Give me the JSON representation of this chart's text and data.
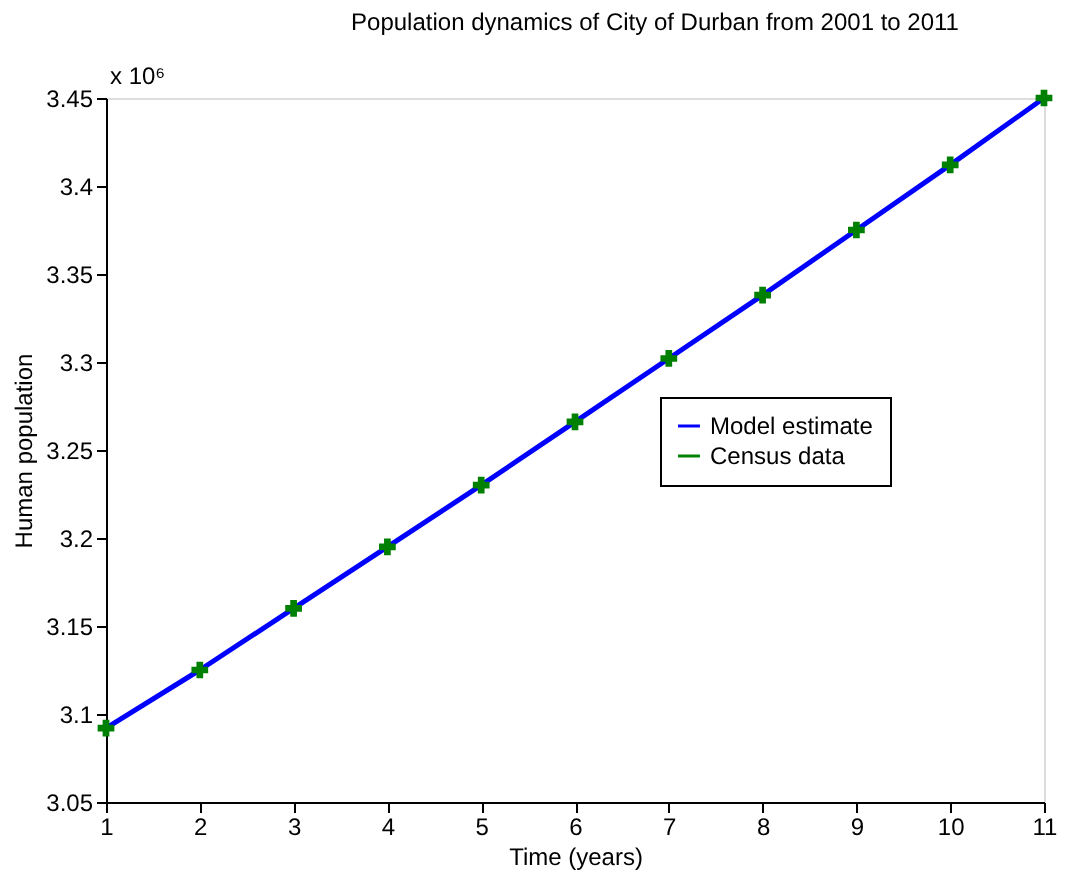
{
  "chart_data": {
    "type": "line",
    "title": "Population dynamics of City  of Durban from 2001 to 2011",
    "xlabel": "Time (years)",
    "ylabel": "Human population",
    "annotations": [
      "x 10⁶"
    ],
    "x": [
      1,
      2,
      3,
      4,
      5,
      6,
      7,
      8,
      9,
      10,
      11
    ],
    "series": [
      {
        "name": "Model estimate",
        "type": "line",
        "color": "#0000ff",
        "line_style": "solid",
        "values": [
          3.092,
          3.125,
          3.16,
          3.195,
          3.23,
          3.266,
          3.302,
          3.338,
          3.375,
          3.412,
          3.45
        ]
      },
      {
        "name": "Census data",
        "type": "scatter",
        "marker": "cross",
        "color": "#008000",
        "values": [
          3.092,
          3.125,
          3.16,
          3.195,
          3.23,
          3.266,
          3.302,
          3.338,
          3.375,
          3.412,
          3.45
        ]
      }
    ],
    "xlim": [
      1,
      11
    ],
    "xticks": [
      1,
      2,
      3,
      4,
      5,
      6,
      7,
      8,
      9,
      10,
      11
    ],
    "ylim": [
      3.05,
      3.45
    ],
    "yticks": [
      3.05,
      3.1,
      3.15,
      3.2,
      3.25,
      3.3,
      3.35,
      3.4,
      3.45
    ],
    "grid": false,
    "legend": "right"
  }
}
